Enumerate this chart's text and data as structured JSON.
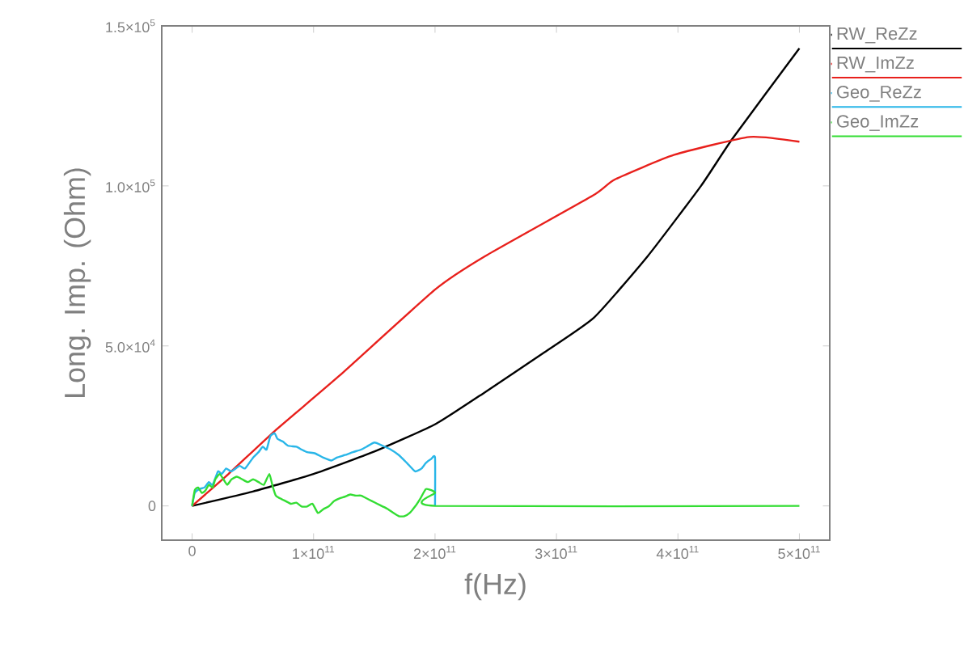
{
  "chart_data": {
    "type": "line",
    "xlabel": "f(Hz)",
    "ylabel": "Long. Imp. (Ohm)",
    "xlim": [
      -25000000000.0,
      525000000000.0
    ],
    "ylim": [
      -10700,
      150000
    ],
    "xticks": [
      0,
      {
        "value": 100000000000.0,
        "label": "1×10$^{11}$"
      },
      {
        "value": 200000000000.0,
        "label": "2×10$^{11}$"
      },
      {
        "value": 300000000000.0,
        "label": "3×10$^{11}$"
      },
      {
        "value": 400000000000.0,
        "label": "4×10$^{11}$"
      },
      {
        "value": 500000000000.0,
        "label": "5×10$^{11}$"
      }
    ],
    "yticks": [
      0,
      {
        "value": 50000,
        "label": "5.0×10$^{4}$"
      },
      {
        "value": 100000,
        "label": "1.0×10$^{5}$"
      },
      {
        "value": 150000,
        "label": "1.5×10$^{5}$"
      }
    ],
    "grid": false,
    "legend": "right",
    "marker": "none",
    "series": [
      {
        "name": "RW_ReZz",
        "color": "#000000",
        "x": [
          0,
          50000000000.0,
          100000000000.0,
          150000000000.0,
          200000000000.0,
          241000000000.0,
          290000000000.0,
          331000000000.0,
          375000000000.0,
          419000000000.0,
          445000000000.0,
          500000000000.0
        ],
        "values": [
          0,
          4500,
          10000,
          17000,
          25500,
          35500,
          48000,
          58900,
          78000,
          100000,
          114800,
          143000
        ]
      },
      {
        "name": "RW_ImZz",
        "color": "#e8201c",
        "x": [
          0,
          30000000000.0,
          68000000000.0,
          121000000000.0,
          200000000000.0,
          241000000000.0,
          330000000000.0,
          348000000000.0,
          397000000000.0,
          459000000000.0,
          500000000000.0
        ],
        "values": [
          0,
          10000,
          23400,
          40600,
          67600,
          78000,
          97000,
          102000,
          109700,
          115300,
          113800
        ]
      },
      {
        "name": "Geo_ReZz",
        "color": "#29b6e8",
        "x": [
          0,
          2200000000.0,
          5800000000.0,
          10200000000.0,
          13800000000.0,
          16900000000.0,
          21300000000.0,
          24400000000.0,
          28000000000.0,
          32400000000.0,
          39100000000.0,
          43600000000.0,
          50200000000.0,
          54700000000.0,
          58200000000.0,
          61300000000.0,
          64400000000.0,
          68000000000.0,
          70200000000.0,
          74700000000.0,
          79100000000.0,
          85800000000.0,
          90200000000.0,
          94700000000.0,
          101300000000.0,
          108000000000.0,
          114700000000.0,
          119100000000.0,
          125800000000.0,
          132400000000.0,
          139100000000.0,
          143600000000.0,
          150200000000.0,
          156900000000.0,
          163600000000.0,
          170200000000.0,
          176900000000.0,
          183600000000.0,
          188900000000.0,
          192400000000.0,
          196900000000.0,
          200000000000.0,
          200000000000.0
        ],
        "values": [
          0,
          4060,
          5250,
          5760,
          7450,
          6600,
          10800,
          10000,
          11700,
          10800,
          12500,
          11700,
          15100,
          16800,
          18500,
          17600,
          21800,
          22700,
          21000,
          20100,
          18800,
          18500,
          17600,
          16800,
          16400,
          15100,
          14200,
          15100,
          15900,
          16800,
          17600,
          18500,
          19800,
          18800,
          17600,
          15900,
          13400,
          10800,
          11700,
          13400,
          14700,
          15100,
          0
        ]
      },
      {
        "name": "Geo_ImZz",
        "color": "#33dd33",
        "x": [
          0,
          2200000000.0,
          4900000000.0,
          8000000000.0,
          11100000000.0,
          13800000000.0,
          16900000000.0,
          19100000000.0,
          22700000000.0,
          25800000000.0,
          28900000000.0,
          32400000000.0,
          36900000000.0,
          41300000000.0,
          45800000000.0,
          50200000000.0,
          54700000000.0,
          59100000000.0,
          63600000000.0,
          66200000000.0,
          68900000000.0,
          72400000000.0,
          76900000000.0,
          81300000000.0,
          85800000000.0,
          90200000000.0,
          94700000000.0,
          99100000000.0,
          103600000000.0,
          108000000000.0,
          112400000000.0,
          116900000000.0,
          121300000000.0,
          125800000000.0,
          130200000000.0,
          134700000000.0,
          139100000000.0,
          143600000000.0,
          148000000000.0,
          152400000000.0,
          156900000000.0,
          161300000000.0,
          165800000000.0,
          170200000000.0,
          174700000000.0,
          179100000000.0,
          183600000000.0,
          188000000000.0,
          192400000000.0,
          196900000000.0,
          200000000000.0,
          200000000000.0,
          500000000000.0
        ],
        "values": [
          0,
          4910,
          5760,
          4060,
          4910,
          6600,
          5760,
          8300,
          9990,
          8300,
          6600,
          8300,
          9140,
          8300,
          7450,
          8300,
          7450,
          6600,
          9990,
          6260,
          3220,
          2370,
          1520,
          680,
          1020,
          -170,
          -170,
          680,
          -2200,
          -1020,
          -170,
          1520,
          2370,
          2880,
          3560,
          3220,
          3220,
          2370,
          1520,
          680,
          -170,
          -1020,
          -2200,
          -3220,
          -3220,
          -2200,
          -170,
          2370,
          5250,
          4910,
          4060,
          0,
          0
        ]
      }
    ]
  }
}
